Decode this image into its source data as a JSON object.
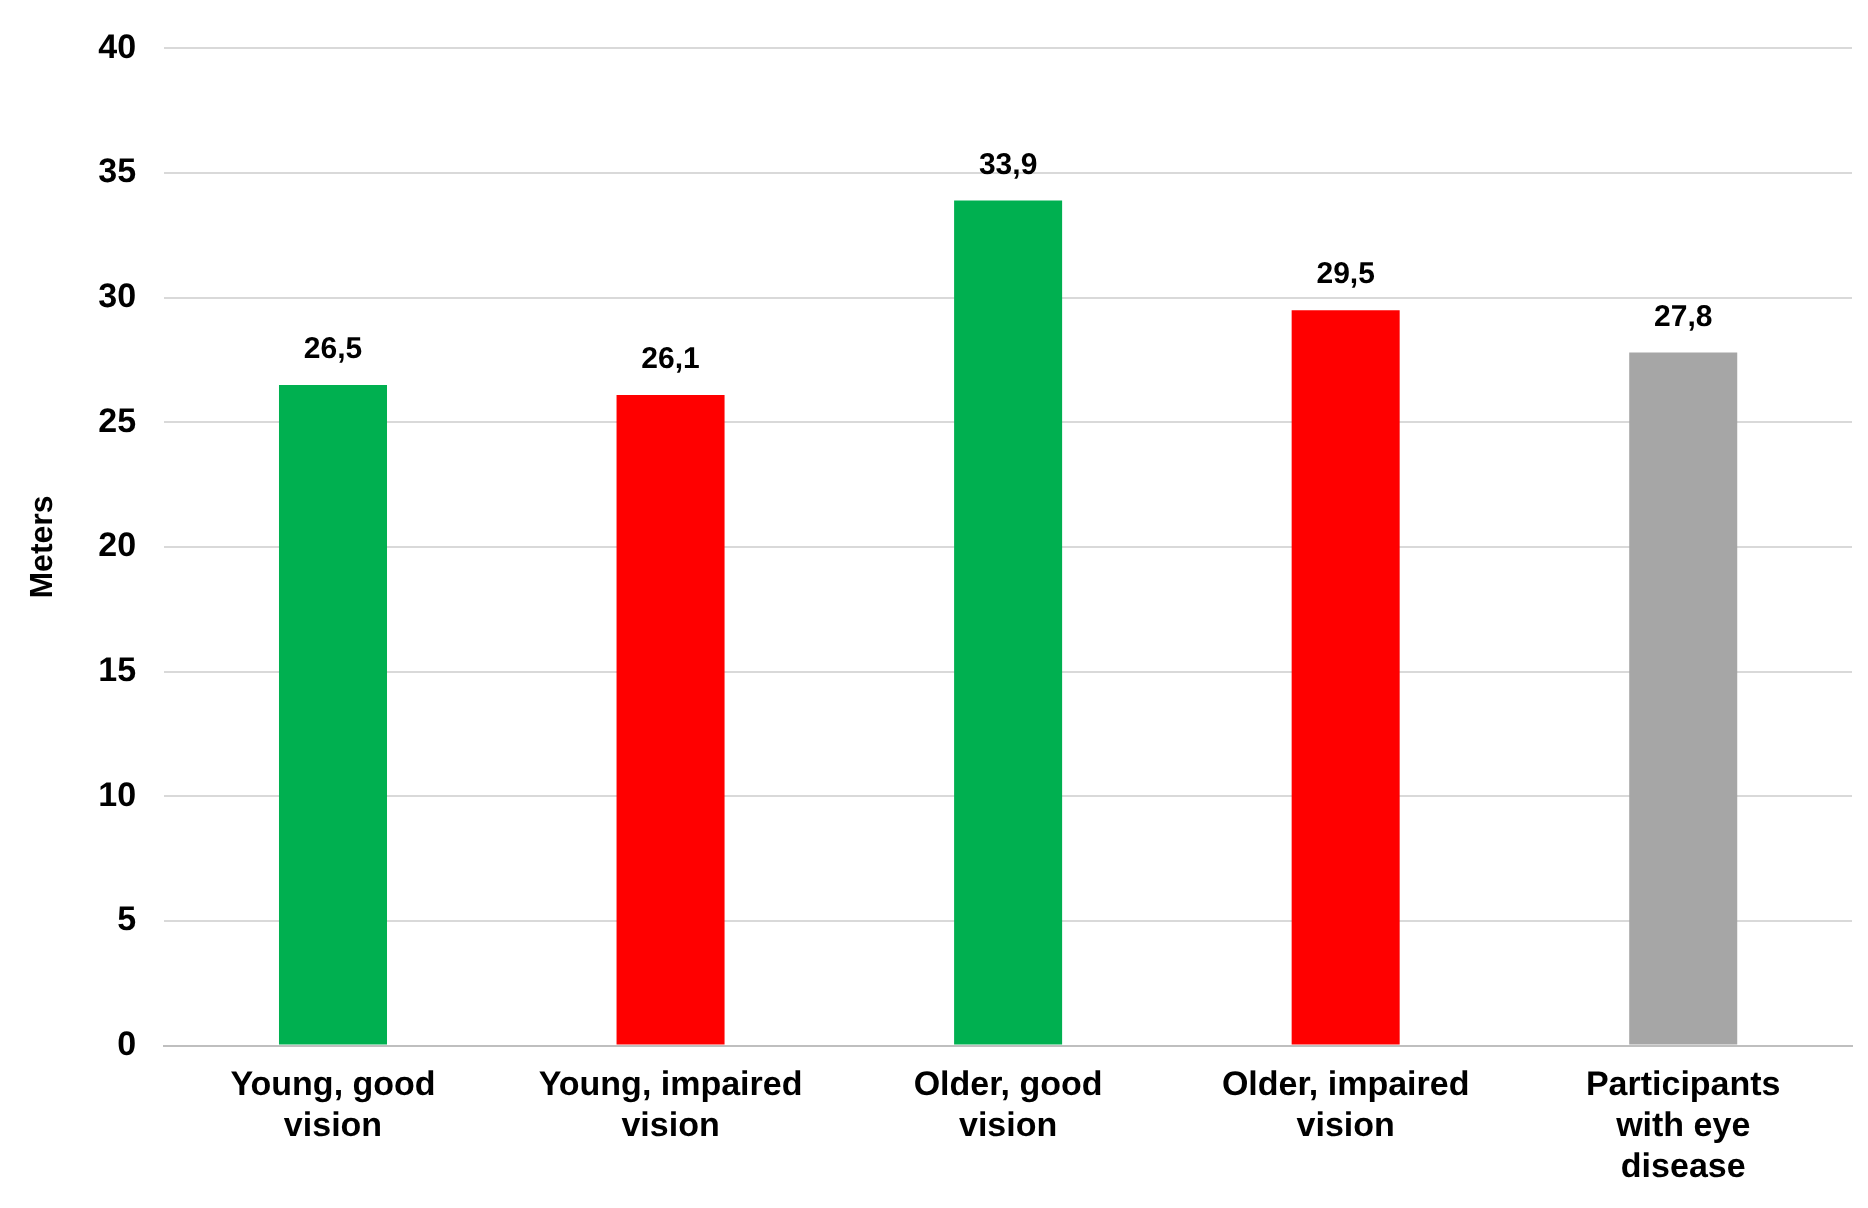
{
  "chart_data": {
    "type": "bar",
    "ylabel": "Meters",
    "categories": [
      "Young, good vision",
      "Young, impaired vision",
      "Older, good vision",
      "Older, impaired vision",
      "Participants with eye disease"
    ],
    "values": [
      26.5,
      26.1,
      33.9,
      29.5,
      27.8
    ],
    "colors": [
      "#00b050",
      "#ff0000",
      "#00b050",
      "#ff0000",
      "#a6a6a6"
    ],
    "value_labels": [
      "26,5",
      "26,1",
      "33,9",
      "29,5",
      "27,8"
    ],
    "ylim": [
      0,
      40
    ],
    "yticks": [
      0,
      5,
      10,
      15,
      20,
      25,
      30,
      35,
      40
    ],
    "grid": "y",
    "legend": false
  }
}
